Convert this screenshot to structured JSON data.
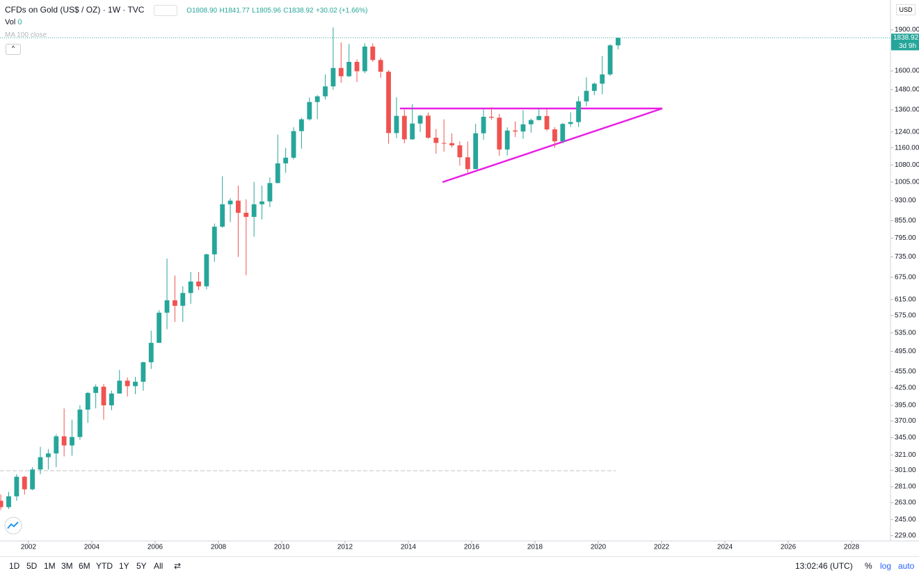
{
  "header": {
    "symbol": "CFDs on Gold (US$ / OZ) · 1W · TVC",
    "open": "O1808.90",
    "high": "H1841.77",
    "low": "L1805.96",
    "close": "C1838.92",
    "change": "+30.02 (+1.66%)",
    "vol_label": "Vol",
    "vol_value": "0",
    "ma_label": "MA 100 close"
  },
  "price_axis": {
    "currency": "USD",
    "last_price_label": "1838.92",
    "countdown": "3d 9h"
  },
  "toolbar": {
    "ranges": [
      "1D",
      "5D",
      "1M",
      "3M",
      "6M",
      "YTD",
      "1Y",
      "5Y",
      "All"
    ],
    "clock": "13:02:46 (UTC)",
    "percent": "%",
    "log": "log",
    "auto": "auto"
  },
  "chart_data": {
    "type": "candlestick",
    "log_scale": true,
    "up_color": "#26a69a",
    "down_color": "#ef5350",
    "x": [
      2001.125,
      2001.375,
      2001.625,
      2001.875,
      2002.125,
      2002.375,
      2002.625,
      2002.875,
      2003.125,
      2003.375,
      2003.625,
      2003.875,
      2004.125,
      2004.375,
      2004.625,
      2004.875,
      2005.125,
      2005.375,
      2005.625,
      2005.875,
      2006.125,
      2006.375,
      2006.625,
      2006.875,
      2007.125,
      2007.375,
      2007.625,
      2007.875,
      2008.125,
      2008.375,
      2008.625,
      2008.875,
      2009.125,
      2009.375,
      2009.625,
      2009.875,
      2010.125,
      2010.375,
      2010.625,
      2010.875,
      2011.125,
      2011.375,
      2011.625,
      2011.875,
      2012.125,
      2012.375,
      2012.625,
      2012.875,
      2013.125,
      2013.375,
      2013.625,
      2013.875,
      2014.125,
      2014.375,
      2014.625,
      2014.875,
      2015.125,
      2015.375,
      2015.625,
      2015.875,
      2016.125,
      2016.375,
      2016.625,
      2016.875,
      2017.125,
      2017.375,
      2017.625,
      2017.875,
      2018.125,
      2018.375,
      2018.625,
      2018.875,
      2019.125,
      2019.375,
      2019.625,
      2019.875,
      2020.125,
      2020.375,
      2020.625
    ],
    "open": [
      265,
      258,
      270,
      293,
      278,
      302,
      318,
      323,
      347,
      334,
      346,
      388,
      416,
      427,
      395,
      415,
      438,
      428,
      436,
      473,
      513,
      582,
      613,
      599,
      632,
      663,
      650,
      743,
      834,
      916,
      930,
      884,
      869,
      916,
      927,
      1001,
      1087,
      1113,
      1244,
      1307,
      1405,
      1439,
      1500,
      1620,
      1565,
      1662,
      1598,
      1772,
      1675,
      1595,
      1234,
      1326,
      1202,
      1284,
      1327,
      1210,
      1184,
      1183,
      1172,
      1115,
      1061,
      1233,
      1321,
      1316,
      1152,
      1247,
      1242,
      1280,
      1303,
      1325,
      1253,
      1192,
      1282,
      1292,
      1409,
      1472,
      1517,
      1577,
      1781
    ],
    "high": [
      272,
      275,
      296,
      294,
      305,
      332,
      329,
      350,
      390,
      372,
      395,
      418,
      431,
      432,
      420,
      458,
      444,
      445,
      474,
      540,
      588,
      730,
      680,
      650,
      690,
      690,
      745,
      845,
      1030,
      940,
      990,
      935,
      1006,
      990,
      1025,
      1226,
      1160,
      1265,
      1315,
      1432,
      1447,
      1577,
      1920,
      1803,
      1791,
      1680,
      1796,
      1796,
      1691,
      1605,
      1434,
      1361,
      1392,
      1332,
      1345,
      1255,
      1307,
      1232,
      1191,
      1191,
      1283,
      1362,
      1375,
      1337,
      1264,
      1296,
      1358,
      1310,
      1366,
      1365,
      1265,
      1287,
      1346,
      1439,
      1557,
      1525,
      1703,
      1789,
      1842
    ],
    "low": [
      255,
      256,
      265,
      272,
      277,
      296,
      302,
      305,
      319,
      320,
      342,
      367,
      390,
      372,
      387,
      415,
      410,
      414,
      420,
      460,
      513,
      543,
      560,
      560,
      604,
      640,
      642,
      720,
      830,
      850,
      735,
      681,
      800,
      860,
      905,
      1000,
      1045,
      1105,
      1156,
      1300,
      1308,
      1420,
      1480,
      1523,
      1560,
      1527,
      1585,
      1662,
      1555,
      1180,
      1208,
      1182,
      1200,
      1240,
      1205,
      1132,
      1142,
      1162,
      1077,
      1046,
      1061,
      1200,
      1305,
      1122,
      1124,
      1214,
      1204,
      1236,
      1302,
      1245,
      1160,
      1182,
      1266,
      1266,
      1381,
      1446,
      1451,
      1567,
      1751
    ],
    "close": [
      258,
      270,
      293,
      278,
      302,
      318,
      323,
      347,
      334,
      346,
      388,
      416,
      427,
      395,
      415,
      438,
      428,
      436,
      473,
      513,
      582,
      613,
      599,
      632,
      663,
      650,
      743,
      834,
      916,
      930,
      884,
      869,
      916,
      927,
      1001,
      1087,
      1113,
      1244,
      1307,
      1405,
      1439,
      1500,
      1620,
      1565,
      1662,
      1598,
      1772,
      1675,
      1595,
      1234,
      1326,
      1202,
      1284,
      1327,
      1210,
      1184,
      1183,
      1172,
      1115,
      1061,
      1233,
      1321,
      1316,
      1152,
      1247,
      1242,
      1280,
      1303,
      1325,
      1253,
      1192,
      1282,
      1292,
      1409,
      1472,
      1517,
      1577,
      1781,
      1838
    ],
    "xlim": [
      2001.1,
      2029.23
    ],
    "xticks": [
      2002,
      2004,
      2006,
      2008,
      2010,
      2012,
      2014,
      2016,
      2018,
      2020,
      2022,
      2024,
      2026,
      2028
    ],
    "ylim": [
      224,
      2153
    ],
    "yticks": [
      {
        "value": 1900,
        "label": "1900.00"
      },
      {
        "value": 1600,
        "label": "1600.00"
      },
      {
        "value": 1480,
        "label": "1480.00"
      },
      {
        "value": 1360,
        "label": "1360.00"
      },
      {
        "value": 1240,
        "label": "1240.00"
      },
      {
        "value": 1160,
        "label": "1160.00"
      },
      {
        "value": 1080,
        "label": "1080.00"
      },
      {
        "value": 1005,
        "label": "1005.00"
      },
      {
        "value": 930,
        "label": "930.00"
      },
      {
        "value": 855,
        "label": "855.00"
      },
      {
        "value": 795,
        "label": "795.00"
      },
      {
        "value": 735,
        "label": "735.00"
      },
      {
        "value": 675,
        "label": "675.00"
      },
      {
        "value": 615,
        "label": "615.00"
      },
      {
        "value": 575,
        "label": "575.00"
      },
      {
        "value": 535,
        "label": "535.00"
      },
      {
        "value": 495,
        "label": "495.00"
      },
      {
        "value": 455,
        "label": "455.00"
      },
      {
        "value": 425,
        "label": "425.00"
      },
      {
        "value": 395,
        "label": "395.00"
      },
      {
        "value": 370,
        "label": "370.00"
      },
      {
        "value": 345,
        "label": "345.00"
      },
      {
        "value": 321,
        "label": "321.00"
      },
      {
        "value": 301,
        "label": "301.00"
      },
      {
        "value": 281,
        "label": "281.00"
      },
      {
        "value": 263,
        "label": "263.00"
      },
      {
        "value": 245,
        "label": "245.00"
      },
      {
        "value": 229,
        "label": "229.00"
      }
    ]
  }
}
